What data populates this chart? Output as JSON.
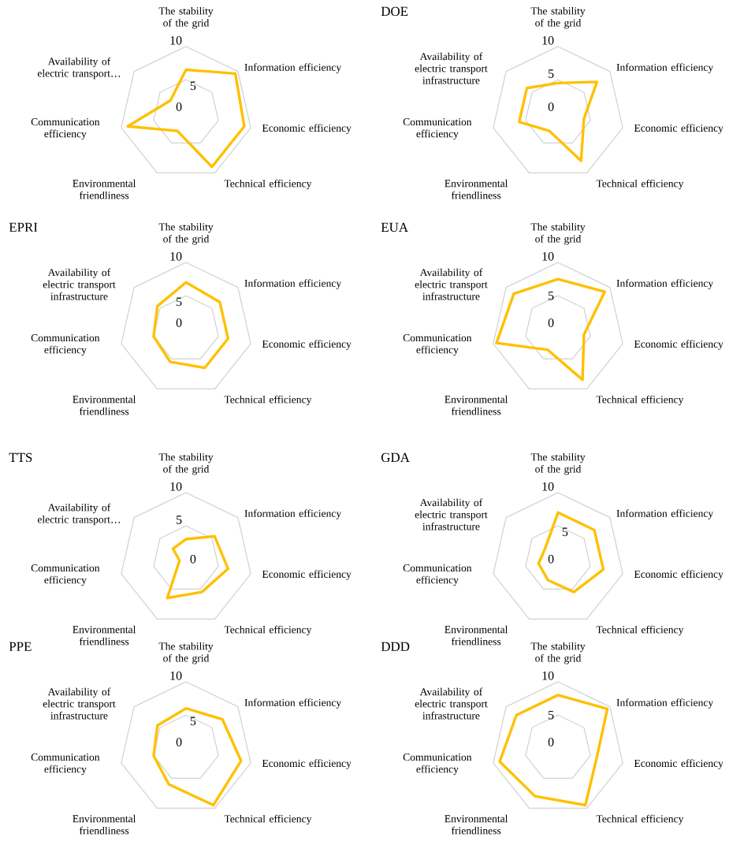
{
  "chart_data": [
    {
      "type": "radar",
      "categories": [
        "The stability of the grid",
        "Information efficiency",
        "Economic efficiency",
        "Technical efficiency",
        "Environmental friendliness",
        "Communication efficiency",
        "Availability of electric transport…"
      ],
      "series": [
        {
          "color": "#ffc000",
          "values": [
            6.5,
            9.5,
            9,
            9,
            3,
            9,
            3
          ]
        }
      ],
      "ylim": [
        0,
        10
      ],
      "yticks": [
        0,
        5,
        10
      ],
      "grid": true
    },
    {
      "type": "radar",
      "title": "DOE",
      "categories": [
        "The stability of the grid",
        "Information efficiency",
        "Economic efficiency",
        "Technical efficiency",
        "Environmental friendliness",
        "Communication efficiency",
        "Availability of electric transport infrastructure"
      ],
      "series": [
        {
          "color": "#ffc000",
          "values": [
            4.5,
            7.5,
            4,
            8,
            3,
            6,
            6
          ]
        }
      ],
      "ylim": [
        0,
        10
      ],
      "yticks": [
        0,
        5,
        10
      ],
      "grid": true
    },
    {
      "type": "radar",
      "title": "EPRI",
      "categories": [
        "The stability of the grid",
        "Information efficiency",
        "Economic efficiency",
        "Technical efficiency",
        "Environmental friendliness",
        "Communication efficiency",
        "Availability of electric transport infrastructure"
      ],
      "series": [
        {
          "color": "#ffc000",
          "values": [
            7,
            6.5,
            6.5,
            6.5,
            5.5,
            5,
            5.5
          ]
        }
      ],
      "ylim": [
        0,
        10
      ],
      "yticks": [
        0,
        5,
        10
      ],
      "grid": true
    },
    {
      "type": "radar",
      "title": "EUA",
      "categories": [
        "The stability of the grid",
        "Information efficiency",
        "Economic efficiency",
        "Technical efficiency",
        "Environmental friendliness",
        "Communication efficiency",
        "Availability of electric transport infrastructure"
      ],
      "series": [
        {
          "color": "#ffc000",
          "values": [
            7.5,
            9,
            4,
            8.5,
            3.5,
            9.5,
            8.5
          ]
        }
      ],
      "ylim": [
        0,
        10
      ],
      "yticks": [
        0,
        5,
        10
      ],
      "grid": true
    },
    {
      "type": "radar",
      "title": "TTS",
      "categories": [
        "The stability of the grid",
        "Information efficiency",
        "Economic efficiency",
        "Technical efficiency",
        "Environmental friendliness",
        "Communication efficiency",
        "Availability of electric transport…"
      ],
      "series": [
        {
          "color": "#ffc000",
          "values": [
            3,
            5.5,
            6.5,
            5.5,
            6.5,
            1,
            2.5
          ]
        }
      ],
      "ylim": [
        0,
        10
      ],
      "yticks": [
        0,
        5,
        10
      ],
      "grid": true
    },
    {
      "type": "radar",
      "title": "GDA",
      "categories": [
        "The stability of the grid",
        "Information efficiency",
        "Economic efficiency",
        "Technical efficiency",
        "Environmental friendliness",
        "Communication efficiency",
        "Availability of electric transport infrastructure"
      ],
      "series": [
        {
          "color": "#ffc000",
          "values": [
            7,
            7,
            7,
            5.5,
            3.5,
            3,
            2.5
          ]
        }
      ],
      "ylim": [
        0,
        10
      ],
      "yticks": [
        0,
        5,
        10
      ],
      "grid": true
    },
    {
      "type": "radar",
      "title": "PPE",
      "categories": [
        "The stability of the grid",
        "Information efficiency",
        "Economic efficiency",
        "Technical efficiency",
        "Environmental friendliness",
        "Communication efficiency",
        "Availability of electric transport infrastructure"
      ],
      "series": [
        {
          "color": "#ffc000",
          "values": [
            6,
            7,
            8.5,
            9.5,
            6,
            5,
            5.5
          ]
        }
      ],
      "ylim": [
        0,
        10
      ],
      "yticks": [
        0,
        5,
        10
      ],
      "grid": true
    },
    {
      "type": "radar",
      "title": "DDD",
      "categories": [
        "The stability of the grid",
        "Information efficiency",
        "Economic efficiency",
        "Technical efficiency",
        "Environmental friendliness",
        "Communication efficiency",
        "Availability of electric transport infrastructure"
      ],
      "series": [
        {
          "color": "#ffc000",
          "values": [
            8,
            9.5,
            6,
            9.5,
            8,
            9,
            8
          ]
        }
      ],
      "ylim": [
        0,
        10
      ],
      "yticks": [
        0,
        5,
        10
      ],
      "grid": true
    }
  ]
}
